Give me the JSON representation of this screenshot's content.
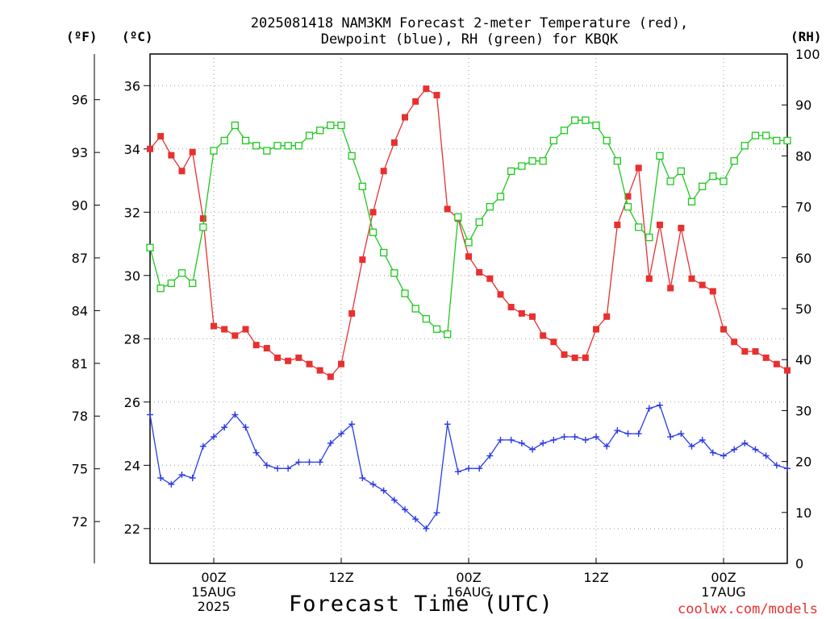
{
  "title": {
    "line1": "2025081418 NAM3KM Forecast 2-meter Temperature (red),",
    "line2": "Dewpoint (blue), RH (green) for KBQK"
  },
  "units": {
    "fahrenheit": "(ºF)",
    "celsius": "(ºC)",
    "rh": "(RH)"
  },
  "xlabel": "Forecast Time (UTC)",
  "credit": "coolwx.com/models",
  "colors": {
    "temperature": "#e83030",
    "dewpoint": "#2a3ae8",
    "rh": "#1ec81e",
    "grid": "#9a9a9a"
  },
  "chart_data": {
    "type": "line",
    "x_unit": "forecast hour from 2025-08-14 18Z",
    "x": [
      0,
      1,
      2,
      3,
      4,
      5,
      6,
      7,
      8,
      9,
      10,
      11,
      12,
      13,
      14,
      15,
      16,
      17,
      18,
      19,
      20,
      21,
      22,
      23,
      24,
      25,
      26,
      27,
      28,
      29,
      30,
      31,
      32,
      33,
      34,
      35,
      36,
      37,
      38,
      39,
      40,
      41,
      42,
      43,
      44,
      45,
      46,
      47,
      48,
      49,
      50,
      51,
      52,
      53,
      54,
      55,
      56,
      57,
      58,
      59,
      60
    ],
    "xlim": [
      0,
      60
    ],
    "x_ticks": [
      {
        "x": 6,
        "labels": [
          "00Z",
          "15AUG",
          "2025"
        ]
      },
      {
        "x": 18,
        "labels": [
          "12Z"
        ]
      },
      {
        "x": 30,
        "labels": [
          "00Z",
          "16AUG"
        ]
      },
      {
        "x": 42,
        "labels": [
          "12Z"
        ]
      },
      {
        "x": 54,
        "labels": [
          "00Z",
          "17AUG"
        ]
      }
    ],
    "left_axis_c": {
      "label": "(ºC)",
      "ylim": [
        20.9,
        37.0
      ],
      "ticks": [
        22,
        24,
        26,
        28,
        30,
        32,
        34,
        36
      ]
    },
    "left_axis_f": {
      "label": "(ºF)",
      "ticks": [
        72,
        75,
        78,
        81,
        84,
        87,
        90,
        93,
        96
      ]
    },
    "right_axis_rh": {
      "label": "(RH)",
      "ylim": [
        0,
        100
      ],
      "ticks": [
        0,
        10,
        20,
        30,
        40,
        50,
        60,
        70,
        80,
        90,
        100
      ]
    },
    "grid": true,
    "series": [
      {
        "name": "Temperature",
        "axis": "celsius",
        "marker": "filled-square",
        "color": "#e83030",
        "values": [
          34.0,
          34.4,
          33.8,
          33.3,
          33.9,
          31.8,
          28.4,
          28.3,
          28.1,
          28.3,
          27.8,
          27.7,
          27.4,
          27.3,
          27.4,
          27.2,
          27.0,
          26.8,
          27.2,
          28.8,
          30.5,
          32.0,
          33.3,
          34.2,
          35.0,
          35.5,
          35.9,
          35.7,
          32.1,
          31.8,
          30.6,
          30.1,
          29.9,
          29.4,
          29.0,
          28.8,
          28.7,
          28.1,
          27.9,
          27.5,
          27.4,
          27.4,
          28.3,
          28.7,
          31.6,
          32.5,
          33.4,
          29.9,
          31.6,
          29.6,
          31.5,
          29.9,
          29.7,
          29.5,
          28.3,
          27.9,
          27.6,
          27.6,
          27.4,
          27.2,
          27.0
        ]
      },
      {
        "name": "Dewpoint",
        "axis": "celsius",
        "marker": "plus",
        "color": "#2a3ae8",
        "values": [
          25.6,
          23.6,
          23.4,
          23.7,
          23.6,
          24.6,
          24.9,
          25.2,
          25.6,
          25.2,
          24.4,
          24.0,
          23.9,
          23.9,
          24.1,
          24.1,
          24.1,
          24.7,
          25.0,
          25.3,
          23.6,
          23.4,
          23.2,
          22.9,
          22.6,
          22.3,
          22.0,
          22.5,
          25.3,
          23.8,
          23.9,
          23.9,
          24.3,
          24.8,
          24.8,
          24.7,
          24.5,
          24.7,
          24.8,
          24.9,
          24.9,
          24.8,
          24.9,
          24.6,
          25.1,
          25.0,
          25.0,
          25.8,
          25.9,
          24.9,
          25.0,
          24.6,
          24.8,
          24.4,
          24.3,
          24.5,
          24.7,
          24.5,
          24.3,
          24.0,
          23.9
        ]
      },
      {
        "name": "RH",
        "axis": "rh",
        "marker": "open-square",
        "color": "#1ec81e",
        "values": [
          62,
          54,
          55,
          57,
          55,
          66,
          81,
          83,
          86,
          83,
          82,
          81,
          82,
          82,
          82,
          84,
          85,
          86,
          86,
          80,
          74,
          65,
          61,
          57,
          53,
          50,
          48,
          46,
          45,
          68,
          63,
          67,
          70,
          72,
          77,
          78,
          79,
          79,
          83,
          85,
          87,
          87,
          86,
          83,
          79,
          70,
          66,
          64,
          80,
          75,
          77,
          71,
          74,
          76,
          75,
          79,
          82,
          84,
          84,
          83,
          83
        ]
      }
    ]
  }
}
